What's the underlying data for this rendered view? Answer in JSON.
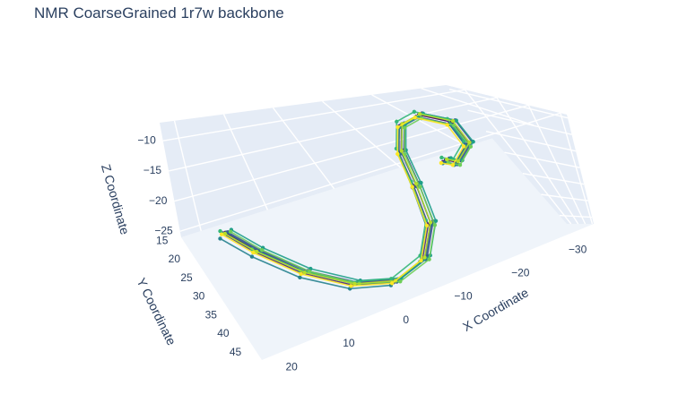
{
  "chart_data": {
    "type": "line3d",
    "title": "NMR CoarseGrained 1r7w backbone",
    "x_axis": {
      "label": "X Coordinate",
      "ticks": [
        -30,
        -20,
        -10,
        0,
        10,
        20
      ],
      "range": [
        -35,
        23
      ]
    },
    "y_axis": {
      "label": "Y Coordinate",
      "ticks": [
        15,
        20,
        25,
        30,
        35,
        40,
        45
      ],
      "range": [
        14,
        47
      ]
    },
    "z_axis": {
      "label": "Z Coordinate",
      "ticks": [
        -10,
        -15,
        -20,
        -25
      ],
      "range": [
        -26,
        -7
      ]
    },
    "grid": true,
    "background": "#e5ecf6",
    "colorscale": "viridis",
    "series": [
      {
        "color": "#440154",
        "points": [
          [
            18,
            21,
            -22.5
          ],
          [
            15,
            26,
            -23.5
          ],
          [
            10,
            33,
            -24.6
          ],
          [
            4,
            40,
            -24.4
          ],
          [
            -2,
            44,
            -23.2
          ],
          [
            -8,
            43,
            -20.8
          ],
          [
            -12,
            38,
            -17.2
          ],
          [
            -14,
            31,
            -13.6
          ],
          [
            -16,
            25,
            -10.7
          ],
          [
            -20,
            20,
            -9.2
          ],
          [
            -24,
            18,
            -9.8
          ],
          [
            -27,
            19,
            -12.6
          ],
          [
            -26,
            23,
            -15.1
          ],
          [
            -22,
            26,
            -16.2
          ],
          [
            -20,
            24,
            -17.4
          ]
        ]
      },
      {
        "color": "#482878",
        "points": [
          [
            18.5,
            21.5,
            -22.1
          ],
          [
            15.5,
            26.5,
            -23.2
          ],
          [
            10.5,
            33.5,
            -24.3
          ],
          [
            4.5,
            40.5,
            -24.1
          ],
          [
            -1.5,
            44.5,
            -22.9
          ],
          [
            -7.5,
            43.5,
            -20.5
          ],
          [
            -11.5,
            38.5,
            -16.9
          ],
          [
            -13.5,
            31.5,
            -13.3
          ],
          [
            -15.5,
            25.5,
            -10.4
          ],
          [
            -19.5,
            20.5,
            -8.9
          ],
          [
            -23.5,
            18.5,
            -9.5
          ],
          [
            -26.5,
            19.5,
            -12.3
          ],
          [
            -25.5,
            23.5,
            -14.8
          ],
          [
            -21.5,
            26.5,
            -15.9
          ],
          [
            -19.5,
            24.5,
            -17.1
          ]
        ]
      },
      {
        "color": "#3e4989",
        "points": [
          [
            17.5,
            20.5,
            -22.9
          ],
          [
            14.5,
            25.5,
            -23.9
          ],
          [
            9.5,
            32.5,
            -25.0
          ],
          [
            3.5,
            39.5,
            -24.8
          ],
          [
            -2.5,
            43.5,
            -23.6
          ],
          [
            -8.5,
            42.5,
            -21.2
          ],
          [
            -12.5,
            37.5,
            -17.6
          ],
          [
            -14.5,
            30.5,
            -14.0
          ],
          [
            -16.5,
            24.5,
            -11.1
          ],
          [
            -20.5,
            19.5,
            -9.6
          ],
          [
            -24.5,
            17.5,
            -10.2
          ],
          [
            -27.5,
            18.5,
            -13.0
          ],
          [
            -26.5,
            22.5,
            -15.5
          ],
          [
            -22.5,
            25.5,
            -16.6
          ],
          [
            -20.5,
            23.5,
            -17.8
          ]
        ]
      },
      {
        "color": "#31688e",
        "points": [
          [
            18,
            22,
            -21.8
          ],
          [
            15,
            27,
            -22.8
          ],
          [
            10,
            34,
            -23.9
          ],
          [
            4,
            41,
            -23.7
          ],
          [
            -2,
            45,
            -22.5
          ],
          [
            -8,
            44,
            -20.1
          ],
          [
            -12,
            39,
            -16.5
          ],
          [
            -14,
            32,
            -12.9
          ],
          [
            -16,
            26,
            -10.0
          ],
          [
            -20,
            21,
            -8.5
          ],
          [
            -24,
            19,
            -9.1
          ],
          [
            -27,
            20,
            -11.9
          ],
          [
            -26,
            24,
            -14.4
          ],
          [
            -22,
            27,
            -15.5
          ],
          [
            -20,
            25,
            -16.7
          ]
        ]
      },
      {
        "color": "#26828e",
        "points": [
          [
            19,
            21,
            -23.2
          ],
          [
            16,
            26,
            -24.2
          ],
          [
            11,
            33,
            -25.3
          ],
          [
            5,
            40,
            -25.1
          ],
          [
            -1,
            44,
            -23.9
          ],
          [
            -7,
            43,
            -21.5
          ],
          [
            -11,
            38,
            -17.9
          ],
          [
            -13,
            31,
            -14.3
          ],
          [
            -15,
            25,
            -11.4
          ],
          [
            -19,
            20,
            -9.9
          ],
          [
            -23,
            18,
            -10.5
          ],
          [
            -26,
            19,
            -13.3
          ],
          [
            -25,
            23,
            -15.8
          ],
          [
            -21,
            26,
            -16.9
          ],
          [
            -19,
            24,
            -18.1
          ]
        ]
      },
      {
        "color": "#1f9e89",
        "points": [
          [
            17,
            21,
            -22.3
          ],
          [
            14,
            26,
            -23.3
          ],
          [
            9,
            33,
            -24.4
          ],
          [
            3,
            40,
            -24.2
          ],
          [
            -3,
            44,
            -23.0
          ],
          [
            -9,
            43,
            -20.6
          ],
          [
            -13,
            38,
            -17.0
          ],
          [
            -15,
            31,
            -13.4
          ],
          [
            -17,
            25,
            -10.5
          ],
          [
            -21,
            20,
            -9.0
          ],
          [
            -25,
            18,
            -9.6
          ],
          [
            -28,
            19,
            -12.4
          ],
          [
            -27,
            23,
            -14.9
          ],
          [
            -23,
            26,
            -16.0
          ],
          [
            -21,
            24,
            -17.2
          ]
        ]
      },
      {
        "color": "#35b779",
        "points": [
          [
            18.5,
            20,
            -22.7
          ],
          [
            15.5,
            25,
            -23.7
          ],
          [
            10.5,
            32,
            -24.8
          ],
          [
            4.5,
            39,
            -24.6
          ],
          [
            -1.5,
            43,
            -23.4
          ],
          [
            -7.5,
            42,
            -21.0
          ],
          [
            -11.5,
            37,
            -17.4
          ],
          [
            -13.5,
            30,
            -13.8
          ],
          [
            -15.5,
            24,
            -10.9
          ],
          [
            -19.5,
            19,
            -9.4
          ],
          [
            -23.5,
            17,
            -10.0
          ],
          [
            -26.5,
            18,
            -12.8
          ],
          [
            -25.5,
            22,
            -15.3
          ],
          [
            -21.5,
            25,
            -16.4
          ],
          [
            -19.5,
            23,
            -17.6
          ]
        ]
      },
      {
        "color": "#6ece58",
        "points": [
          [
            17.5,
            22.5,
            -21.5
          ],
          [
            14.5,
            27.5,
            -22.5
          ],
          [
            9.5,
            34.5,
            -23.6
          ],
          [
            3.5,
            41.5,
            -23.4
          ],
          [
            -2.5,
            45.5,
            -22.2
          ],
          [
            -8.5,
            44.5,
            -19.8
          ],
          [
            -12.5,
            39.5,
            -16.2
          ],
          [
            -14.5,
            32.5,
            -12.6
          ],
          [
            -16.5,
            26.5,
            -9.7
          ],
          [
            -20.5,
            21.5,
            -8.2
          ],
          [
            -24.5,
            19.5,
            -8.8
          ],
          [
            -27.5,
            20.5,
            -11.6
          ],
          [
            -26.5,
            24.5,
            -14.1
          ],
          [
            -22.5,
            27.5,
            -15.2
          ],
          [
            -20.5,
            25.5,
            -16.4
          ]
        ]
      },
      {
        "color": "#b5de2b",
        "points": [
          [
            18,
            20.5,
            -23.0
          ],
          [
            15,
            25.5,
            -24.0
          ],
          [
            10,
            32.5,
            -25.1
          ],
          [
            4,
            39.5,
            -24.9
          ],
          [
            -2,
            43.5,
            -23.7
          ],
          [
            -8,
            42.5,
            -21.3
          ],
          [
            -12,
            37.5,
            -17.7
          ],
          [
            -14,
            30.5,
            -14.1
          ],
          [
            -16,
            24.5,
            -11.2
          ],
          [
            -20,
            19.5,
            -9.7
          ],
          [
            -24,
            17.5,
            -10.3
          ],
          [
            -27,
            18.5,
            -13.1
          ],
          [
            -26,
            22.5,
            -15.6
          ],
          [
            -22,
            25.5,
            -16.7
          ],
          [
            -20,
            23.5,
            -17.9
          ]
        ]
      },
      {
        "color": "#fde725",
        "points": [
          [
            18.8,
            21.8,
            -22.0
          ],
          [
            15.8,
            26.8,
            -23.0
          ],
          [
            10.8,
            33.8,
            -24.1
          ],
          [
            4.8,
            40.8,
            -23.9
          ],
          [
            -1.2,
            44.8,
            -22.7
          ],
          [
            -7.2,
            43.8,
            -20.3
          ],
          [
            -11.2,
            38.8,
            -16.7
          ],
          [
            -13.2,
            31.8,
            -13.1
          ],
          [
            -15.2,
            25.8,
            -10.2
          ],
          [
            -19.2,
            20.8,
            -8.7
          ],
          [
            -23.2,
            18.8,
            -9.3
          ],
          [
            -26.2,
            19.8,
            -12.1
          ],
          [
            -25.2,
            23.8,
            -14.6
          ],
          [
            -21.2,
            26.8,
            -15.7
          ],
          [
            -19.2,
            24.8,
            -16.9
          ]
        ]
      }
    ]
  }
}
